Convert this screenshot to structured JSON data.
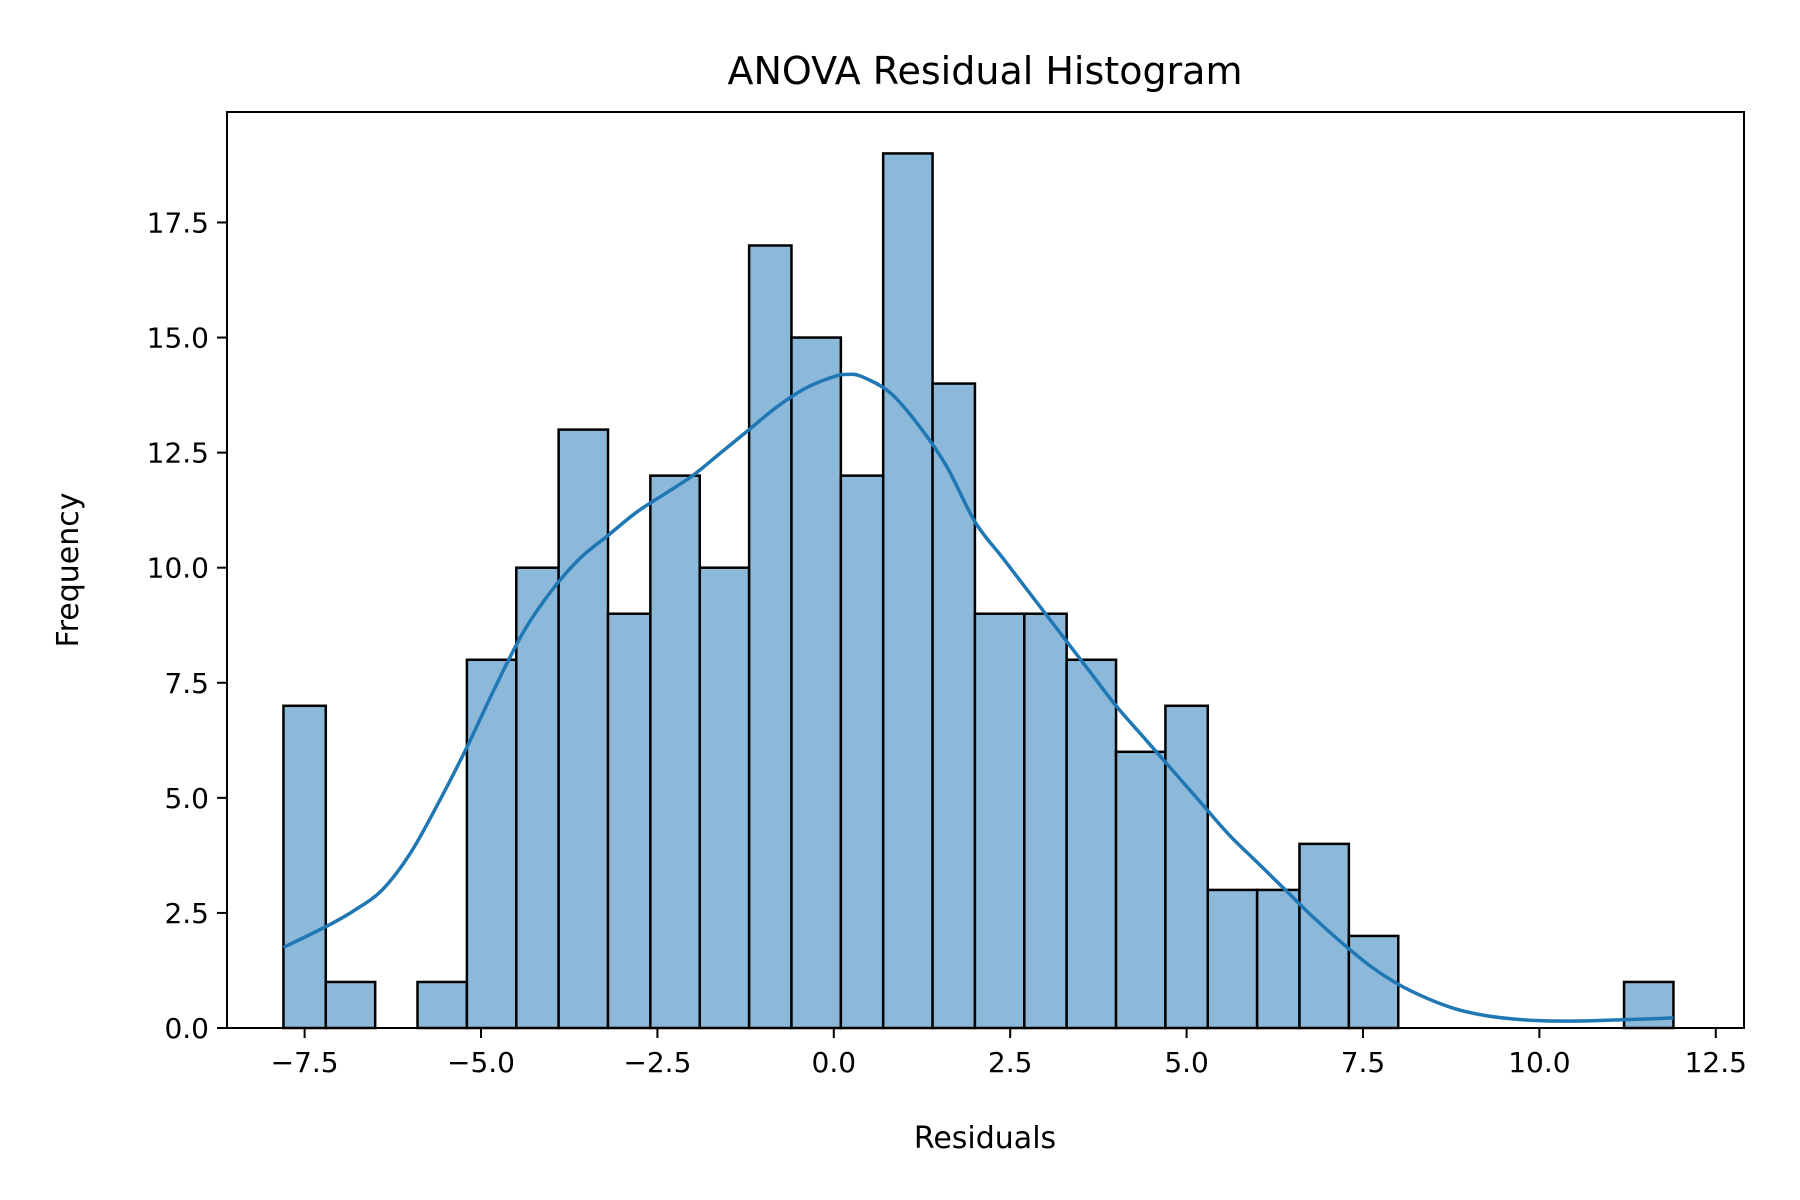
{
  "chart_data": {
    "type": "bar",
    "title": "ANOVA Residual Histogram",
    "xlabel": "Residuals",
    "ylabel": "Frequency",
    "xlim": [
      -8.6,
      12.9
    ],
    "ylim": [
      0,
      19.9
    ],
    "grid": false,
    "legend": "none",
    "bar_color": "#8cb8da",
    "edge_color": "#000000",
    "kde_color": "#1f77b4",
    "xticks": [
      -7.5,
      -5.0,
      -2.5,
      0.0,
      2.5,
      5.0,
      7.5,
      10.0,
      12.5
    ],
    "xtick_labels": [
      "−7.5",
      "−5.0",
      "−2.5",
      "0.0",
      "2.5",
      "5.0",
      "7.5",
      "10.0",
      "12.5"
    ],
    "yticks": [
      0.0,
      2.5,
      5.0,
      7.5,
      10.0,
      12.5,
      15.0,
      17.5
    ],
    "ytick_labels": [
      "0.0",
      "2.5",
      "5.0",
      "7.5",
      "10.0",
      "12.5",
      "15.0",
      "17.5"
    ],
    "bins": {
      "edges": [
        -7.8,
        -7.2,
        -6.5,
        -5.9,
        -5.2,
        -4.5,
        -3.9,
        -3.2,
        -2.6,
        -1.9,
        -1.2,
        -0.6,
        0.1,
        0.7,
        1.4,
        2.0,
        2.7,
        3.3,
        4.0,
        4.7,
        5.3,
        6.0,
        6.6,
        7.3,
        8.0,
        8.6,
        9.3,
        9.9,
        10.6,
        11.2,
        11.9
      ],
      "counts": [
        7,
        1,
        0,
        1,
        8,
        10,
        13,
        9,
        12,
        10,
        17,
        15,
        12,
        19,
        14,
        9,
        9,
        8,
        6,
        7,
        3,
        3,
        4,
        2,
        0,
        0,
        0,
        0,
        0,
        1
      ]
    },
    "kde": {
      "x": [
        -7.8,
        -7.2,
        -6.8,
        -6.4,
        -6.0,
        -5.6,
        -5.2,
        -4.8,
        -4.4,
        -4.0,
        -3.6,
        -3.2,
        -2.8,
        -2.4,
        -2.0,
        -1.6,
        -1.2,
        -0.8,
        -0.4,
        0.0,
        0.2,
        0.4,
        0.8,
        1.2,
        1.6,
        2.0,
        2.4,
        2.8,
        3.2,
        3.6,
        4.0,
        4.4,
        4.8,
        5.2,
        5.6,
        6.0,
        6.4,
        6.8,
        7.2,
        7.6,
        8.0,
        8.4,
        8.8,
        9.2,
        9.6,
        10.0,
        10.4,
        10.8,
        11.2,
        11.6,
        11.9
      ],
      "y": [
        1.75,
        2.2,
        2.55,
        3.0,
        3.8,
        4.9,
        6.1,
        7.4,
        8.6,
        9.5,
        10.2,
        10.7,
        11.2,
        11.6,
        12.0,
        12.5,
        13.0,
        13.5,
        13.9,
        14.15,
        14.2,
        14.15,
        13.8,
        13.1,
        12.2,
        11.0,
        10.2,
        9.4,
        8.6,
        7.8,
        7.0,
        6.3,
        5.6,
        4.9,
        4.2,
        3.6,
        3.0,
        2.4,
        1.85,
        1.35,
        0.95,
        0.65,
        0.42,
        0.28,
        0.2,
        0.16,
        0.15,
        0.16,
        0.18,
        0.2,
        0.22
      ]
    }
  }
}
